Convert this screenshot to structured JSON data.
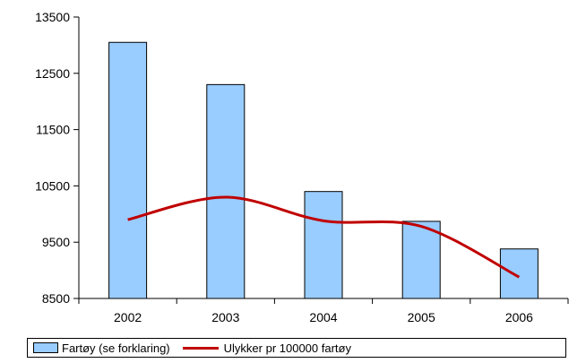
{
  "chart_data": {
    "type": "bar",
    "categories": [
      "2002",
      "2003",
      "2004",
      "2005",
      "2006"
    ],
    "series": [
      {
        "name": "Fartøy (se forklaring)",
        "kind": "bar",
        "values": [
          13050,
          12300,
          10400,
          9870,
          9380
        ],
        "color": "#99ccff"
      },
      {
        "name": "Ulykker pr 100000 fartøy",
        "kind": "line",
        "values": [
          9900,
          10300,
          9880,
          9780,
          8880
        ],
        "color": "#c00000"
      }
    ],
    "ylim": [
      8500,
      13500
    ],
    "yticks": [
      "8500",
      "9500",
      "10500",
      "11500",
      "12500",
      "13500"
    ],
    "title": "",
    "xlabel": "",
    "ylabel": "",
    "grid": false,
    "legend_position": "bottom"
  }
}
